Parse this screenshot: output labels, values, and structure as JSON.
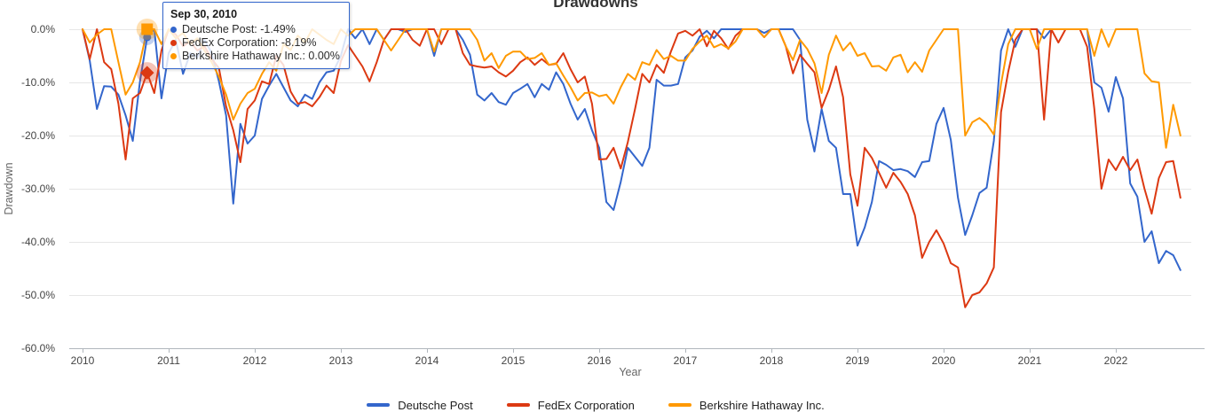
{
  "tooltip": {
    "date": "Sep 30, 2010",
    "rows": [
      {
        "text": "Deutsche Post: -1.49%"
      },
      {
        "text": "FedEx Corporation: -8.19%"
      },
      {
        "text": "Berkshire Hathaway Inc.: 0.00%"
      }
    ],
    "border_color": "#3366cc"
  },
  "chart_data": {
    "type": "line",
    "title": "Drawdowns",
    "xlabel": "Year",
    "ylabel": "Drawdown",
    "grid": true,
    "legend_position": "bottom",
    "x_start": "2009-12",
    "x_step": "1 month",
    "x_end": "2022-09",
    "x_tick_labels": [
      "2010",
      "2011",
      "2012",
      "2013",
      "2014",
      "2015",
      "2016",
      "2017",
      "2018",
      "2019",
      "2020",
      "2021",
      "2022"
    ],
    "y_tick_labels": [
      "0.0%",
      "-10.0%",
      "-20.0%",
      "-30.0%",
      "-40.0%",
      "-50.0%",
      "-60.0%"
    ],
    "ylim": [
      -60,
      0
    ],
    "axis_label_color": "#444444",
    "axis_title_color": "#666666",
    "gridline_color": "#e6e6e6",
    "baseline_color": "#b0b6bc",
    "selection": {
      "index": 9,
      "date": "Sep 30, 2010",
      "marker_shapes": [
        "circle",
        "diamond",
        "square"
      ]
    },
    "series": [
      {
        "name": "Deutsche Post",
        "color": "#3366cc",
        "values": [
          0,
          -5.9,
          -15.0,
          -10.7,
          -10.8,
          -12.3,
          -16.2,
          -21.0,
          -9.8,
          -1.49,
          0,
          -13.0,
          -4.5,
          -2.0,
          -8.4,
          -4.5,
          -5.3,
          -2.0,
          -4.5,
          -9.8,
          -16.2,
          -32.8,
          -17.8,
          -21.5,
          -20.0,
          -13.1,
          -10.6,
          -8.4,
          -10.9,
          -13.4,
          -14.5,
          -12.3,
          -13.1,
          -10.0,
          -8.1,
          -7.8,
          -5.0,
          0,
          -1.7,
          0,
          -2.8,
          0,
          -2.0,
          0,
          0,
          -0.5,
          0,
          0,
          0,
          -5.0,
          0,
          0,
          0,
          -2.0,
          -4.8,
          -12.3,
          -13.4,
          -12.0,
          -13.7,
          -14.2,
          -12.0,
          -11.2,
          -10.3,
          -12.8,
          -10.3,
          -11.4,
          -8.1,
          -10.3,
          -14.0,
          -17.0,
          -15.0,
          -19.0,
          -22.3,
          -32.5,
          -34.0,
          -28.7,
          -22.3,
          -24.0,
          -25.7,
          -22.3,
          -9.5,
          -10.6,
          -10.6,
          -10.3,
          -5.3,
          -4.0,
          -1.4,
          -0.3,
          -1.7,
          0,
          0,
          0,
          0,
          0,
          0,
          -0.7,
          0,
          0,
          0,
          0,
          -2.0,
          -17.0,
          -23.0,
          -15.0,
          -21.0,
          -22.3,
          -31.0,
          -31.0,
          -40.7,
          -37.3,
          -32.5,
          -24.8,
          -25.5,
          -26.5,
          -26.3,
          -26.7,
          -27.8,
          -25.0,
          -24.8,
          -17.8,
          -14.8,
          -20.8,
          -31.7,
          -38.7,
          -35.0,
          -30.8,
          -29.8,
          -21.0,
          -4.0,
          0,
          -3.3,
          0,
          0,
          0,
          -1.7,
          0,
          0,
          0,
          0,
          0,
          0,
          -10.0,
          -11.0,
          -15.5,
          -9.0,
          -13.0,
          -29.0,
          -31.5,
          -40.0,
          -38.0,
          -44.0,
          -41.7,
          -42.5,
          -45.3
        ]
      },
      {
        "name": "FedEx Corporation",
        "color": "#dc3912",
        "values": [
          0,
          -5.6,
          0,
          -6.2,
          -7.5,
          -14.0,
          -24.5,
          -13.0,
          -12.0,
          -8.19,
          -12.0,
          -4.0,
          0,
          -1.0,
          -3.2,
          -2.3,
          -4.0,
          -3.2,
          -5.6,
          -7.3,
          -14.5,
          -19.0,
          -25.0,
          -15.0,
          -13.4,
          -9.8,
          -10.3,
          -5.0,
          -6.7,
          -11.7,
          -14.0,
          -13.7,
          -14.5,
          -12.8,
          -10.6,
          -12.0,
          -6.0,
          -3.0,
          -5.0,
          -7.0,
          -9.8,
          -6.2,
          -2.0,
          0,
          0,
          0,
          -2.0,
          -3.1,
          0,
          0,
          -2.8,
          0,
          0,
          -4.5,
          -6.7,
          -7.0,
          -7.2,
          -7.0,
          -8.1,
          -8.9,
          -7.8,
          -6.2,
          -5.3,
          -6.7,
          -5.6,
          -6.7,
          -6.5,
          -4.5,
          -7.5,
          -10.0,
          -8.9,
          -14.0,
          -24.5,
          -24.4,
          -22.3,
          -26.2,
          -21.2,
          -15.0,
          -8.4,
          -10.0,
          -6.7,
          -8.2,
          -4.2,
          -0.8,
          -0.3,
          -1.2,
          0,
          -3.2,
          -0.3,
          -1.7,
          -3.7,
          -1.2,
          0,
          0,
          0,
          -1.5,
          0,
          0,
          -3.2,
          -8.3,
          -4.8,
          -6.5,
          -8.1,
          -14.8,
          -11.4,
          -7.0,
          -12.8,
          -27.3,
          -33.2,
          -22.3,
          -24.2,
          -27.0,
          -29.8,
          -27.0,
          -28.7,
          -31.0,
          -35.0,
          -43.0,
          -40.0,
          -37.8,
          -40.3,
          -44.0,
          -44.8,
          -52.3,
          -50.0,
          -49.5,
          -47.8,
          -44.8,
          -15.6,
          -8.0,
          -2.0,
          0,
          0,
          0,
          -17.0,
          0,
          -2.5,
          0,
          0,
          0,
          -3.3,
          -15.0,
          -30.0,
          -24.5,
          -26.5,
          -24.0,
          -26.5,
          -24.5,
          -30.0,
          -34.7,
          -28.0,
          -25.0,
          -24.8,
          -31.7
        ]
      },
      {
        "name": "Berkshire Hathaway Inc.",
        "color": "#ff9900",
        "values": [
          0,
          -2.5,
          -1.0,
          0,
          0,
          -6.2,
          -12.3,
          -10.0,
          -6.2,
          0,
          0,
          -2.8,
          0,
          -1.7,
          -0.7,
          -2.8,
          -1.7,
          -4.0,
          -6.2,
          -8.9,
          -12.3,
          -17.0,
          -14.0,
          -12.0,
          -11.2,
          -8.4,
          -6.2,
          -7.8,
          -2.8,
          -3.9,
          -1.2,
          -2.5,
          0,
          -1.0,
          -2.0,
          -2.8,
          0,
          -1.2,
          0,
          0,
          0,
          0,
          -2.0,
          -4.0,
          -2.0,
          0,
          0,
          0,
          0,
          -4.2,
          0,
          0,
          0,
          0,
          0,
          -2.0,
          -5.9,
          -4.5,
          -7.3,
          -5.0,
          -4.2,
          -4.2,
          -5.6,
          -5.4,
          -4.5,
          -6.7,
          -6.4,
          -8.7,
          -10.9,
          -13.4,
          -12.0,
          -11.9,
          -12.6,
          -12.3,
          -14.0,
          -10.9,
          -8.4,
          -9.5,
          -6.2,
          -6.7,
          -3.9,
          -5.6,
          -5.0,
          -5.9,
          -5.9,
          -3.7,
          -2.3,
          -1.2,
          -3.4,
          -2.8,
          -3.6,
          -2.3,
          0,
          0,
          0,
          -1.5,
          0,
          0,
          -3.2,
          -5.8,
          -2.0,
          -3.7,
          -6.4,
          -12.0,
          -4.8,
          -1.2,
          -4.0,
          -2.5,
          -5.0,
          -4.5,
          -7.0,
          -6.9,
          -7.8,
          -5.3,
          -4.8,
          -8.1,
          -6.2,
          -8.0,
          -4.0,
          -2.0,
          0,
          0,
          0,
          -20.0,
          -17.5,
          -16.7,
          -17.8,
          -19.8,
          -10.3,
          -2.8,
          0,
          0,
          0,
          -3.7,
          0,
          0,
          0,
          0,
          0,
          0,
          0,
          -5.0,
          0,
          -3.3,
          0,
          0,
          0,
          0,
          -8.3,
          -9.8,
          -10.0,
          -22.3,
          -14.2,
          -20.0
        ]
      }
    ]
  }
}
